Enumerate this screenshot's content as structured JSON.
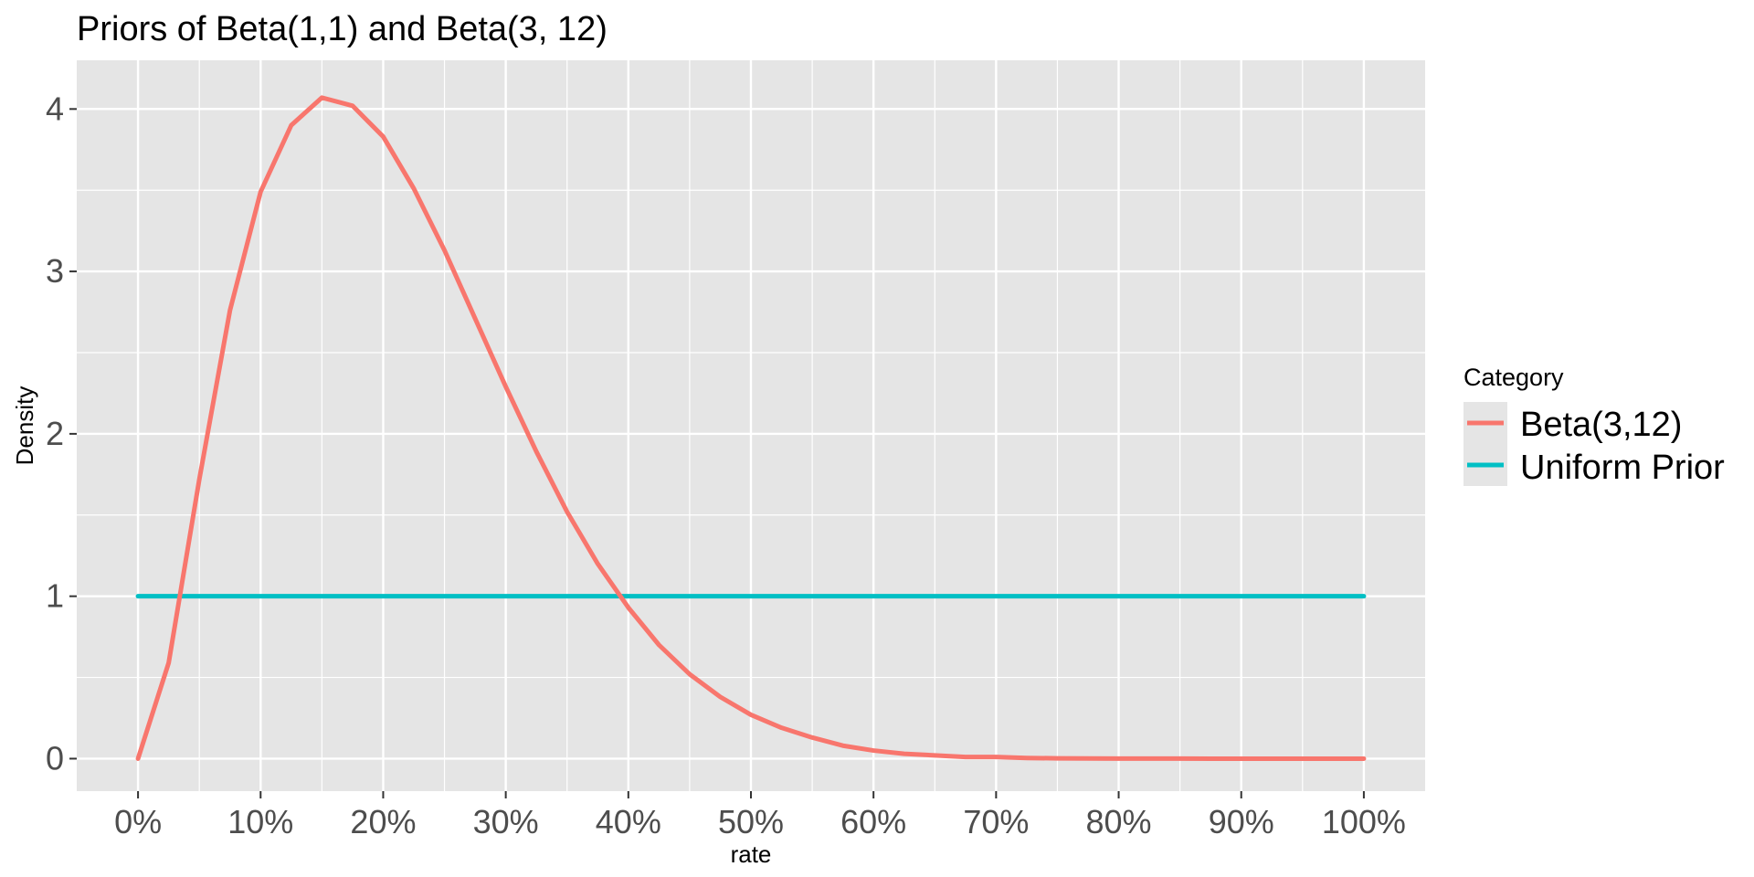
{
  "chart_data": {
    "type": "line",
    "title": "Priors of Beta(1,1) and Beta(3, 12)",
    "xlabel": "rate",
    "ylabel": "Density",
    "xlim": [
      -0.05,
      1.05
    ],
    "ylim": [
      -0.2,
      4.3
    ],
    "x_ticks": [
      0,
      0.1,
      0.2,
      0.3,
      0.4,
      0.5,
      0.6,
      0.7,
      0.8,
      0.9,
      1.0
    ],
    "x_tick_labels": [
      "0%",
      "10%",
      "20%",
      "30%",
      "40%",
      "50%",
      "60%",
      "70%",
      "80%",
      "90%",
      "100%"
    ],
    "y_ticks": [
      0,
      1,
      2,
      3,
      4
    ],
    "y_tick_labels": [
      "0",
      "1",
      "2",
      "3",
      "4"
    ],
    "grid": true,
    "legend": {
      "title": "Category",
      "placement": "right",
      "entries": [
        "Beta(3,12)",
        "Uniform Prior"
      ]
    },
    "colors": {
      "Beta(3,12)": "#f8766d",
      "Uniform Prior": "#00bfc4",
      "panel_background": "#e5e5e5",
      "grid": "#ffffff"
    },
    "x": [
      0,
      0.025,
      0.05,
      0.075,
      0.1,
      0.125,
      0.15,
      0.175,
      0.2,
      0.225,
      0.25,
      0.275,
      0.3,
      0.325,
      0.35,
      0.375,
      0.4,
      0.425,
      0.45,
      0.475,
      0.5,
      0.525,
      0.55,
      0.575,
      0.6,
      0.625,
      0.65,
      0.675,
      0.7,
      0.725,
      0.75,
      0.775,
      0.8,
      0.825,
      0.85,
      0.875,
      0.9,
      0.925,
      0.95,
      0.975,
      1.0
    ],
    "series": [
      {
        "name": "Beta(3,12)",
        "values": [
          0,
          0.59,
          1.72,
          2.76,
          3.49,
          3.9,
          4.07,
          4.02,
          3.83,
          3.51,
          3.13,
          2.71,
          2.29,
          1.89,
          1.52,
          1.2,
          0.93,
          0.7,
          0.52,
          0.38,
          0.27,
          0.19,
          0.13,
          0.08,
          0.05,
          0.03,
          0.02,
          0.01,
          0.01,
          0.004,
          0.002,
          0.001,
          0.0006,
          0.0003,
          0.0001,
          0,
          0,
          0,
          0,
          0,
          0
        ]
      },
      {
        "name": "Uniform Prior",
        "values": [
          1,
          1,
          1,
          1,
          1,
          1,
          1,
          1,
          1,
          1,
          1,
          1,
          1,
          1,
          1,
          1,
          1,
          1,
          1,
          1,
          1,
          1,
          1,
          1,
          1,
          1,
          1,
          1,
          1,
          1,
          1,
          1,
          1,
          1,
          1,
          1,
          1,
          1,
          1,
          1,
          1
        ]
      }
    ]
  }
}
